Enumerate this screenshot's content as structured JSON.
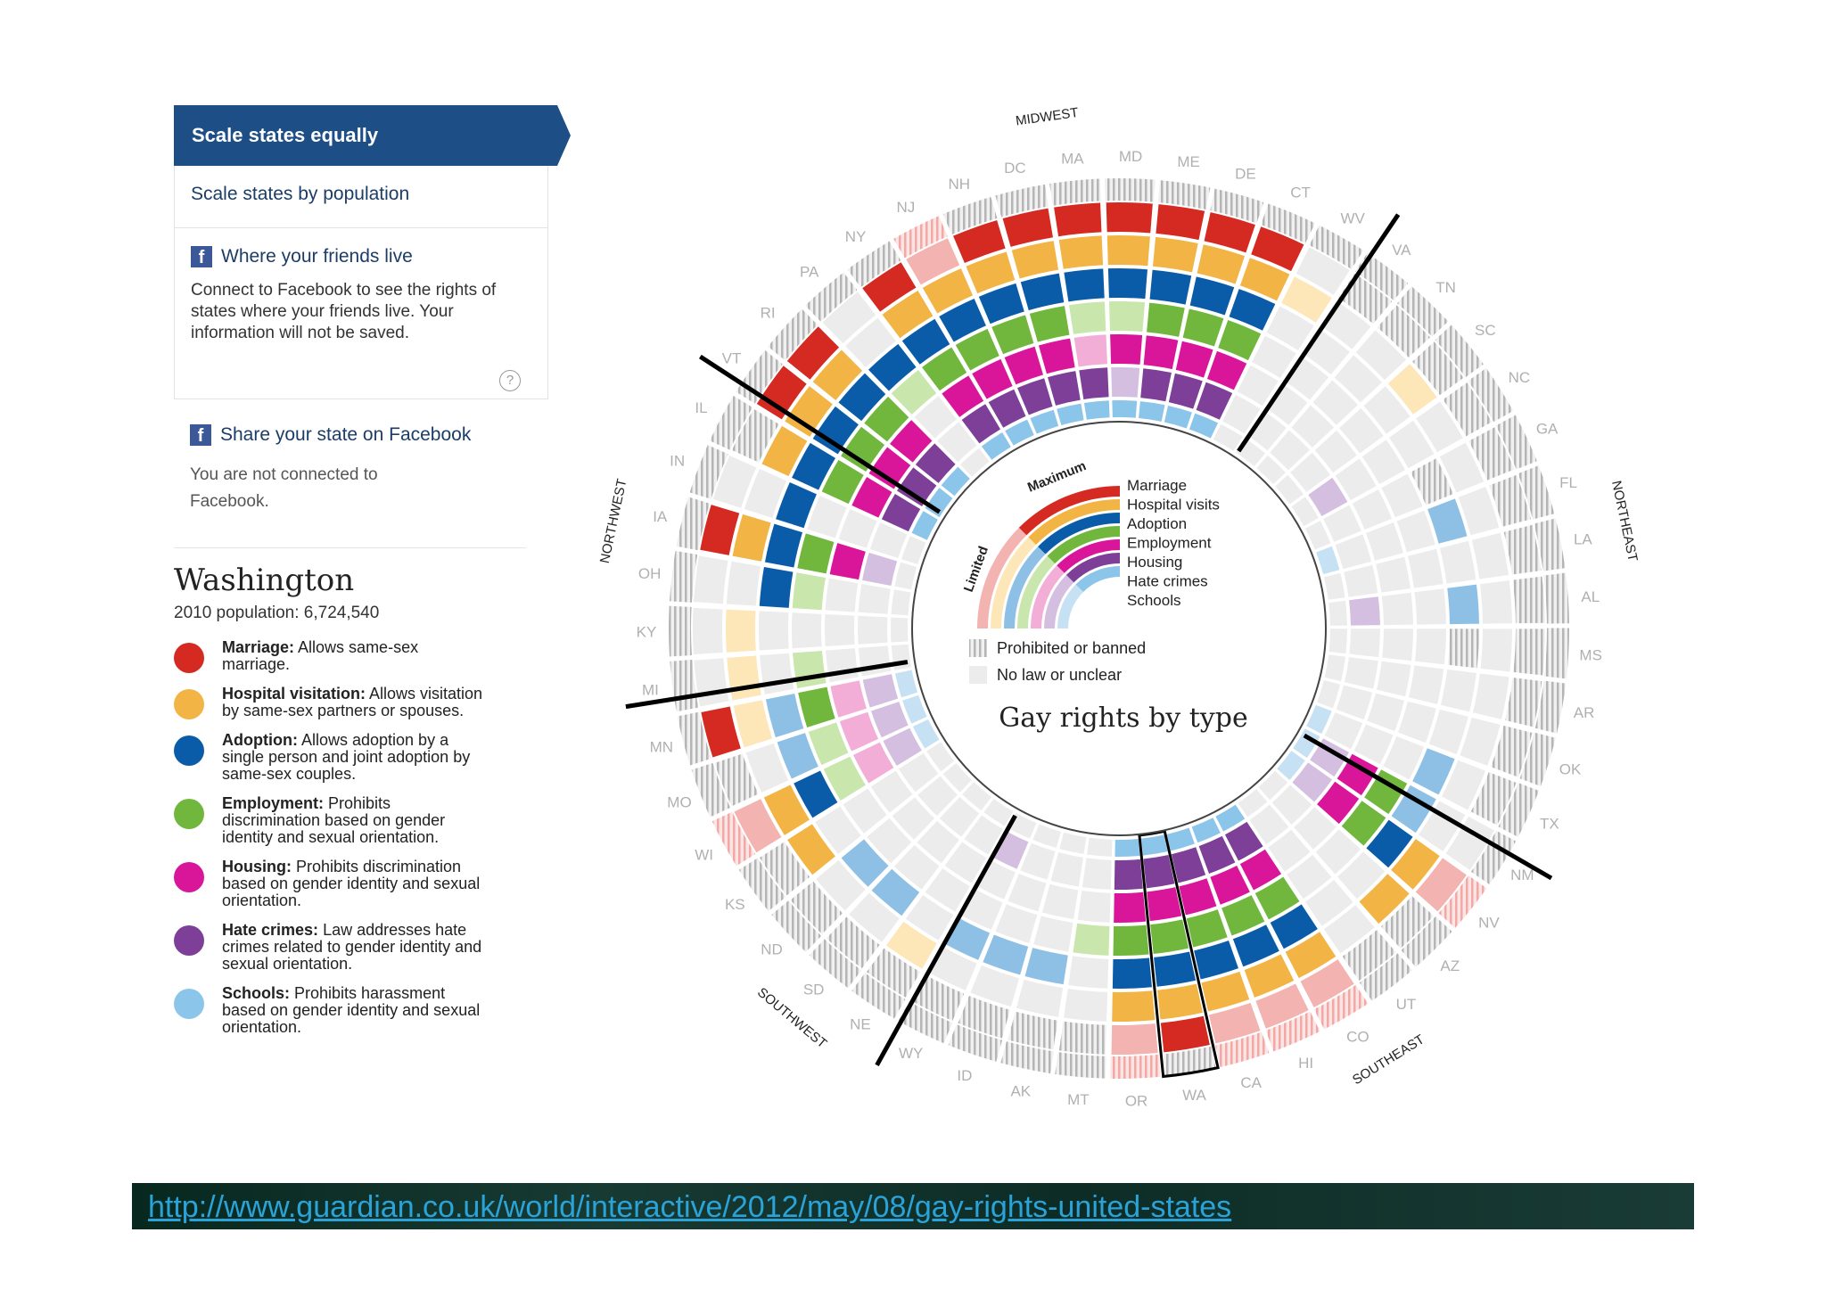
{
  "sidebar": {
    "tab_equal": "Scale states equally",
    "tab_population": "Scale states by population",
    "friends_title": "Where your friends live",
    "friends_text": "Connect to Facebook to see the rights of states where your friends live. Your information will not be saved.",
    "share_title": "Share your state on Facebook",
    "not_connected": "You are not connected to Facebook.",
    "fb_glyph": "f",
    "help_glyph": "?"
  },
  "state": {
    "name": "Washington",
    "population": "2010 population: 6,724,540"
  },
  "legend": [
    {
      "key": "marriage",
      "label": "Marriage:",
      "text": " Allows same-sex marriage.",
      "color": "#d42a21"
    },
    {
      "key": "hospital",
      "label": "Hospital visitation:",
      "text": " Allows visitation by same-sex partners or spouses.",
      "color": "#f2b444"
    },
    {
      "key": "adoption",
      "label": "Adoption:",
      "text": " Allows adoption by a single person and joint adoption by same-sex couples.",
      "color": "#0a5ca8"
    },
    {
      "key": "employment",
      "label": "Employment:",
      "text": " Prohibits discrimination based on gender identity and sexual orientation.",
      "color": "#71b73e"
    },
    {
      "key": "housing",
      "label": "Housing:",
      "text": " Prohibits discrimination based on gender identity and sexual orientation.",
      "color": "#d9159a"
    },
    {
      "key": "hate",
      "label": "Hate crimes:",
      "text": " Law addresses hate crimes related to gender identity and sexual orientation.",
      "color": "#7d3f98"
    },
    {
      "key": "schools",
      "label": "Schools:",
      "text": " Prohibits harassment based on gender identity and sexual orientation.",
      "color": "#8cc5ea"
    }
  ],
  "chart_data": {
    "type": "radial",
    "title": "Gay rights by type",
    "key_labels": [
      "Marriage",
      "Hospital visits",
      "Adoption",
      "Employment",
      "Housing",
      "Hate crimes",
      "Schools"
    ],
    "key_scale": {
      "max": "Maximum",
      "min": "Limited"
    },
    "status_labels": {
      "banned": "Prohibited or banned",
      "none": "No law or unclear"
    },
    "colors": {
      "full": [
        "#d42a21",
        "#f2b444",
        "#0a5ca8",
        "#71b73e",
        "#d9159a",
        "#7d3f98",
        "#8cc5ea"
      ],
      "limited": [
        "#f3b3b1",
        "#fde7b8",
        "#8ec0e5",
        "#c9e6ad",
        "#f2aed6",
        "#d4bfe0",
        "#c6e1f4"
      ],
      "none": "#ececec",
      "banned": "#b8b8b8"
    },
    "regions": [
      "MIDWEST",
      "NORTHEAST",
      "SOUTHEAST",
      "SOUTHWEST",
      "NORTHWEST"
    ],
    "states": [
      {
        "s": "MN",
        "v": "FLLFLLL"
      },
      {
        "s": "MI",
        "v": "NLNLNNN"
      },
      {
        "s": "KY",
        "v": "NLNNNNN"
      },
      {
        "s": "OH",
        "v": "NNFLNNN"
      },
      {
        "s": "IA",
        "v": "FFFFFLN"
      },
      {
        "s": "IN",
        "v": "NNFNNNN"
      },
      {
        "s": "IL",
        "v": "BFFFFFF"
      },
      {
        "s": "VT",
        "v": "FFFFFFF"
      },
      {
        "s": "RI",
        "v": "FFFFFFF"
      },
      {
        "s": "PA",
        "v": "NNFLNNN"
      },
      {
        "s": "NY",
        "v": "FFFFFFF"
      },
      {
        "s": "NJ",
        "v": "LFFFFFF"
      },
      {
        "s": "NH",
        "v": "FFFFFFF"
      },
      {
        "s": "DC",
        "v": "FFFFFFF"
      },
      {
        "s": "MA",
        "v": "FFFLLFF"
      },
      {
        "s": "MD",
        "v": "FFFLFLF"
      },
      {
        "s": "ME",
        "v": "FFFFFFF"
      },
      {
        "s": "DE",
        "v": "FFFFFFF"
      },
      {
        "s": "CT",
        "v": "FFFFFFF"
      },
      {
        "s": "WV",
        "v": "NLNNNNN"
      },
      {
        "s": "VA",
        "v": "BNNNNNN"
      },
      {
        "s": "TN",
        "v": "BNNNNNN"
      },
      {
        "s": "SC",
        "v": "BLNNNNN"
      },
      {
        "s": "NC",
        "v": "BNNNNLN"
      },
      {
        "s": "GA",
        "v": "BNBNNNN"
      },
      {
        "s": "FL",
        "v": "BNLNNNL"
      },
      {
        "s": "LA",
        "v": "BNNNNNN"
      },
      {
        "s": "AL",
        "v": "BNLNNLN"
      },
      {
        "s": "MS",
        "v": "BNBNNNN"
      },
      {
        "s": "AR",
        "v": "BNNNNNN"
      },
      {
        "s": "OK",
        "v": "BNNNNNN"
      },
      {
        "s": "TX",
        "v": "BNLNNNL"
      },
      {
        "s": "NM",
        "v": "NNLFFLL"
      },
      {
        "s": "NV",
        "v": "LFFFFLL"
      },
      {
        "s": "AZ",
        "v": "BFNNNNN"
      },
      {
        "s": "UT",
        "v": "BNNNNNN"
      },
      {
        "s": "CO",
        "v": "LFFFFFF"
      },
      {
        "s": "HI",
        "v": "LFFFFFF"
      },
      {
        "s": "CA",
        "v": "LFFFFFF"
      },
      {
        "s": "WA",
        "v": "FFFFFFF"
      },
      {
        "s": "OR",
        "v": "LFFFFFF"
      },
      {
        "s": "MT",
        "v": "BNNLNNN"
      },
      {
        "s": "AK",
        "v": "BNLNNNN"
      },
      {
        "s": "ID",
        "v": "BNLNNNN"
      },
      {
        "s": "WY",
        "v": "BNLNNLN"
      },
      {
        "s": "NE",
        "v": "BLNNNNN"
      },
      {
        "s": "SD",
        "v": "BNLNNNN"
      },
      {
        "s": "ND",
        "v": "BNLNNNN"
      },
      {
        "s": "KS",
        "v": "BFNNNNN"
      },
      {
        "s": "WI",
        "v": "LFFLLLL"
      },
      {
        "s": "MO",
        "v": "BNLLLLL"
      }
    ]
  },
  "footer": {
    "url": "http://www.guardian.co.uk/world/interactive/2012/may/08/gay-rights-united-states"
  }
}
